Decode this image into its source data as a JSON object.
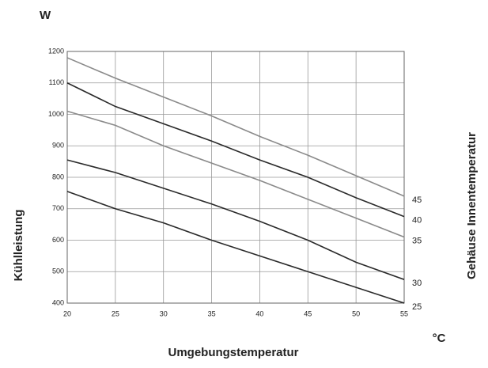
{
  "chart_data": {
    "type": "line",
    "title": "W",
    "x_label": "Umgebungstemperatur",
    "x_unit": "°C",
    "y_label": "Kühlleistung",
    "y2_label": "Gehäuse Innentemperatur",
    "x": [
      20,
      25,
      30,
      35,
      40,
      45,
      50,
      55
    ],
    "xlim": [
      20,
      55
    ],
    "xticks": [
      20,
      25,
      30,
      35,
      40,
      45,
      50,
      55
    ],
    "ylim": [
      400,
      1200
    ],
    "yticks": [
      400,
      500,
      600,
      700,
      800,
      900,
      1000,
      1100,
      1200
    ],
    "grid": true,
    "series": [
      {
        "name": "45",
        "color": "#8a8a8a",
        "values": [
          1180,
          1115,
          1055,
          995,
          930,
          870,
          805,
          740
        ]
      },
      {
        "name": "40",
        "color": "#2a2a2a",
        "values": [
          1100,
          1025,
          970,
          915,
          855,
          800,
          735,
          675
        ]
      },
      {
        "name": "35",
        "color": "#8a8a8a",
        "values": [
          1010,
          965,
          900,
          845,
          790,
          730,
          670,
          610
        ]
      },
      {
        "name": "30",
        "color": "#2a2a2a",
        "values": [
          855,
          815,
          765,
          715,
          660,
          600,
          530,
          475
        ]
      },
      {
        "name": "25",
        "color": "#2a2a2a",
        "values": [
          755,
          700,
          655,
          600,
          550,
          500,
          450,
          400
        ]
      }
    ]
  }
}
